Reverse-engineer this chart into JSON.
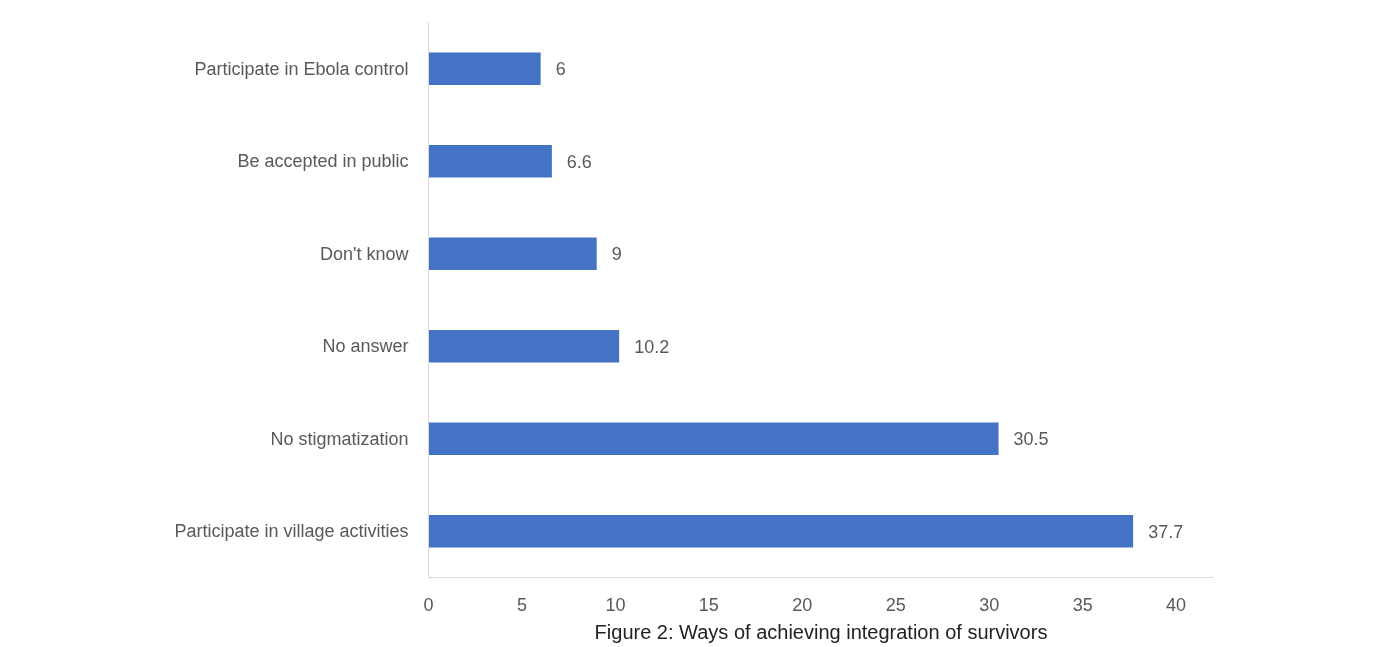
{
  "chart_data": {
    "type": "bar",
    "orientation": "horizontal",
    "title": "Figure 2: Ways of achieving integration of survivors",
    "categories": [
      "Participate in Ebola control",
      "Be accepted in public",
      "Don't know",
      "No answer",
      "No stigmatization",
      "Participate in village activities"
    ],
    "values": [
      6,
      6.6,
      9,
      10.2,
      30.5,
      37.7
    ],
    "color": "#4472c4",
    "xlim": [
      0,
      42
    ],
    "xticks": [
      0,
      5,
      10,
      15,
      20,
      25,
      30,
      35,
      40
    ],
    "grid": false,
    "data_labels": true
  }
}
